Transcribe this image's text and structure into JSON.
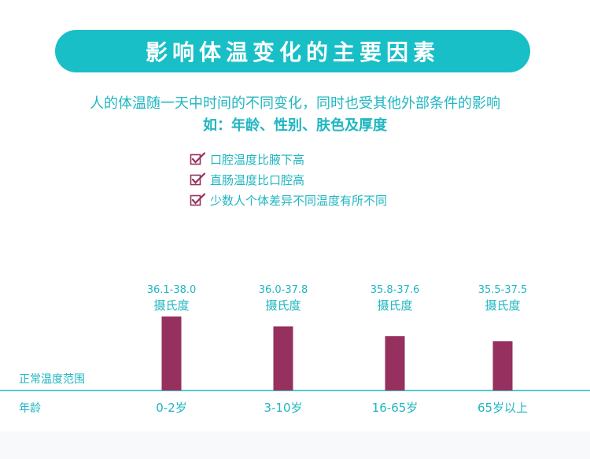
{
  "banner": {
    "title": "影响体温变化的主要因素"
  },
  "intro": {
    "line1": "人的体温随一天中时间的不同变化，同时也受其他外部条件的影响",
    "line2": "如：年龄、性别、肤色及厚度"
  },
  "checklist": {
    "icon": "checkbox-checked-icon",
    "items": [
      "口腔温度比腋下高",
      "直肠温度比口腔高",
      "少数人个体差异不同温度有所不同"
    ]
  },
  "colors": {
    "accent": "#19bfc7",
    "text_teal": "#1fb6c1",
    "bar": "#96305e",
    "check": "#96305e"
  },
  "chart_data": {
    "type": "bar",
    "ylabel": "正常温度范围",
    "xlabel": "年龄",
    "categories": [
      "0-2岁",
      "3-10岁",
      "16-65岁",
      "65岁以上"
    ],
    "ranges": [
      "36.1-38.0",
      "36.0-37.8",
      "35.8-37.6",
      "35.5-37.5"
    ],
    "unit": "摄氏度",
    "values": [
      38.0,
      37.8,
      37.6,
      37.5
    ],
    "ylim": [
      36.5,
      38.0
    ],
    "grid": false,
    "legend": "none"
  }
}
